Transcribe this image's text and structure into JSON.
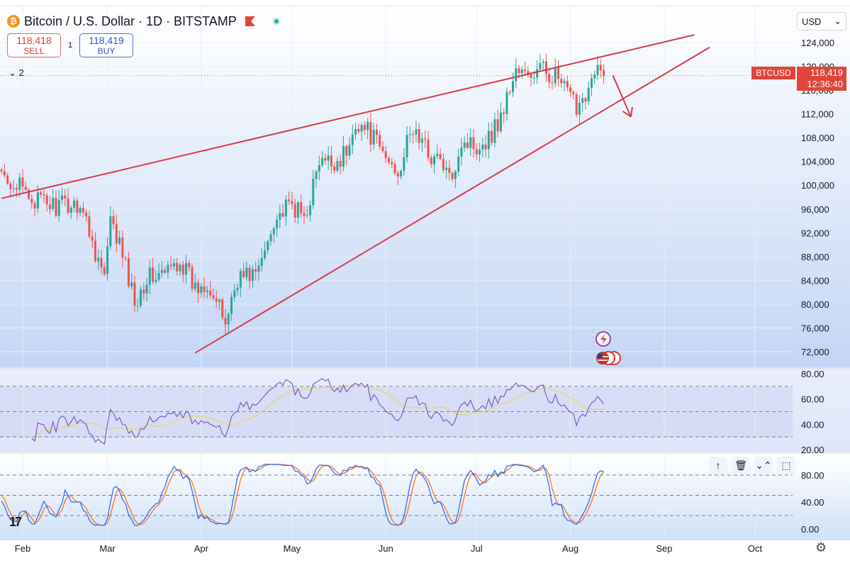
{
  "header": {
    "coin_glyph": "₿",
    "title": "Bitcoin / U.S. Dollar · 1D · BITSTAMP",
    "sell_price": "118,418",
    "sell_label": "SELL",
    "spread": "1",
    "buy_price": "118,419",
    "buy_label": "BUY",
    "indicators_count": "⌄ 2",
    "currency": "USD",
    "currency_chevron": "⌄"
  },
  "last_price": {
    "symbol": "BTCUSD",
    "price": "118,419",
    "countdown": "12:36:40"
  },
  "toolbar": [
    "↑",
    "🗑",
    "⌄⌃",
    "⬚"
  ],
  "icons": [
    "bitcoin-coin-icon",
    "flag-icon",
    "market-open-dot-icon",
    "sparkle-icon",
    "us-flag-icon",
    "settings-gear-icon",
    "tradingview-logo"
  ],
  "colors": {
    "up": "#26a69a",
    "down": "#ef5350",
    "trendline": "#d8394a",
    "rsi": "#7e57c2",
    "rsi_ma": "#e8d56a",
    "stoch_k": "#2962ff",
    "stoch_d": "#ff6d00",
    "background_top": "#ffffff",
    "background_bottom": "#c6d8f6"
  },
  "chart_data": [
    {
      "type": "candlestick",
      "title": "Bitcoin / U.S. Dollar · 1D · BITSTAMP",
      "x_ticks": [
        "Feb",
        "Mar",
        "Apr",
        "May",
        "Jun",
        "Jul",
        "Aug",
        "Sep",
        "Oct"
      ],
      "y_ticks": [
        "72,000",
        "76,000",
        "80,000",
        "84,000",
        "88,000",
        "92,000",
        "96,000",
        "100,000",
        "104,000",
        "108,000",
        "112,000",
        "116,000",
        "120,000",
        "124,000"
      ],
      "ylim": [
        70000,
        126000
      ],
      "last_price": 118419,
      "anchors": [
        [
          "2025-01-20",
          102000
        ],
        [
          "2025-01-27",
          101500
        ],
        [
          "2025-02-01",
          99000
        ],
        [
          "2025-02-05",
          97500
        ],
        [
          "2025-02-12",
          96500
        ],
        [
          "2025-02-20",
          97000
        ],
        [
          "2025-02-25",
          89000
        ],
        [
          "2025-02-28",
          84500
        ],
        [
          "2025-03-02",
          93500
        ],
        [
          "2025-03-05",
          90000
        ],
        [
          "2025-03-10",
          80500
        ],
        [
          "2025-03-14",
          84500
        ],
        [
          "2025-03-20",
          85000
        ],
        [
          "2025-03-25",
          87500
        ],
        [
          "2025-03-30",
          82500
        ],
        [
          "2025-04-03",
          84000
        ],
        [
          "2025-04-07",
          79000
        ],
        [
          "2025-04-09",
          77000
        ],
        [
          "2025-04-13",
          84500
        ],
        [
          "2025-04-20",
          85500
        ],
        [
          "2025-04-25",
          94500
        ],
        [
          "2025-05-01",
          96500
        ],
        [
          "2025-05-05",
          94500
        ],
        [
          "2025-05-10",
          103500
        ],
        [
          "2025-05-15",
          103800
        ],
        [
          "2025-05-20",
          106000
        ],
        [
          "2025-05-22",
          111000
        ],
        [
          "2025-05-27",
          108500
        ],
        [
          "2025-06-01",
          104500
        ],
        [
          "2025-06-05",
          102500
        ],
        [
          "2025-06-10",
          109500
        ],
        [
          "2025-06-15",
          105500
        ],
        [
          "2025-06-20",
          103500
        ],
        [
          "2025-06-22",
          100500
        ],
        [
          "2025-06-26",
          107500
        ],
        [
          "2025-07-01",
          106800
        ],
        [
          "2025-07-05",
          108000
        ],
        [
          "2025-07-09",
          111500
        ],
        [
          "2025-07-14",
          119500
        ],
        [
          "2025-07-18",
          118000
        ],
        [
          "2025-07-22",
          119500
        ],
        [
          "2025-07-27",
          118500
        ],
        [
          "2025-08-01",
          114500
        ],
        [
          "2025-08-03",
          113500
        ],
        [
          "2025-08-07",
          116500
        ],
        [
          "2025-08-10",
          119000
        ],
        [
          "2025-08-12",
          118419
        ]
      ],
      "trendlines": [
        {
          "from": [
            "2025-01-25",
            97800
          ],
          "to": [
            "2025-09-11",
            125300
          ]
        },
        {
          "from": [
            "2025-03-30",
            71800
          ],
          "to": [
            "2025-09-16",
            123200
          ]
        }
      ],
      "arrow": {
        "from": [
          "2025-08-15",
          118500
        ],
        "to": [
          "2025-08-21",
          111500
        ]
      }
    },
    {
      "type": "line",
      "title": "",
      "y_ticks": [
        "20.00",
        "40.00",
        "60.00",
        "80.00"
      ],
      "ylim": [
        20,
        80
      ],
      "levels": [
        30,
        50,
        70
      ],
      "last_value": 57
    },
    {
      "type": "line",
      "title": "",
      "y_ticks": [
        "0.00",
        "40.00",
        "80.00"
      ],
      "ylim": [
        -5,
        105
      ],
      "levels": [
        20,
        50,
        80
      ]
    }
  ]
}
